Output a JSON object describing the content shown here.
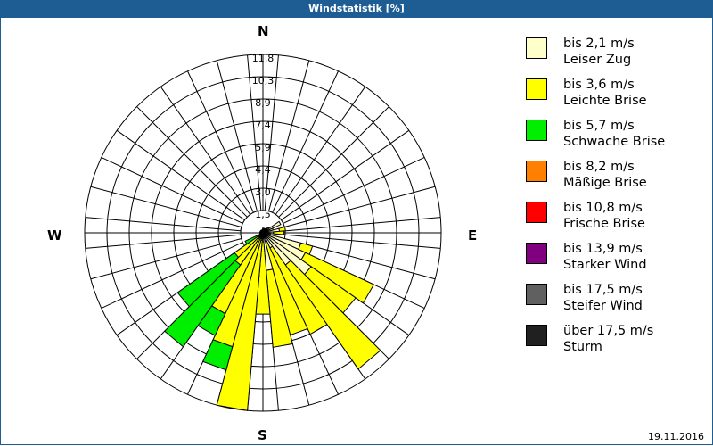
{
  "window": {
    "title": "Windstatistik [%]",
    "date": "19.11.2016"
  },
  "compass": {
    "n": "N",
    "e": "E",
    "s": "S",
    "w": "W"
  },
  "legend": [
    {
      "speed": "bis 2,1 m/s",
      "name": "Leiser Zug",
      "color": "#ffffcc"
    },
    {
      "speed": "bis 3,6 m/s",
      "name": "Leichte Brise",
      "color": "#ffff00"
    },
    {
      "speed": "bis 5,7 m/s",
      "name": "Schwache Brise",
      "color": "#00ee00"
    },
    {
      "speed": "bis 8,2 m/s",
      "name": "Mäßige Brise",
      "color": "#ff8000"
    },
    {
      "speed": "bis 10,8 m/s",
      "name": "Frische Brise",
      "color": "#ff0000"
    },
    {
      "speed": "bis 13,9 m/s",
      "name": "Starker Wind",
      "color": "#800080"
    },
    {
      "speed": "bis 17,5 m/s",
      "name": "Steifer Wind",
      "color": "#606060"
    },
    {
      "speed": "über 17,5 m/s",
      "name": "Sturm",
      "color": "#202020"
    }
  ],
  "chart_data": {
    "type": "polar-bar",
    "title": "Windstatistik [%]",
    "ring_labels": [
      "1,5",
      "3,0",
      "4,4",
      "5,9",
      "7,4",
      "8,9",
      "10,3",
      "11,8"
    ],
    "rmax": 11.8,
    "sector_width_deg": 10,
    "categories": [
      "bis 2,1 m/s",
      "bis 3,6 m/s",
      "bis 5,7 m/s",
      "bis 8,2 m/s",
      "bis 10,8 m/s",
      "bis 13,9 m/s",
      "bis 17,5 m/s",
      "über 17,5 m/s"
    ],
    "sectors": [
      {
        "dir": 0,
        "values": [
          0.3,
          0,
          0
        ]
      },
      {
        "dir": 10,
        "values": [
          0.3,
          0,
          0
        ]
      },
      {
        "dir": 20,
        "values": [
          0.3,
          0,
          0
        ]
      },
      {
        "dir": 30,
        "values": [
          0.3,
          0,
          0
        ]
      },
      {
        "dir": 40,
        "values": [
          0.4,
          0,
          0
        ]
      },
      {
        "dir": 50,
        "values": [
          0.5,
          0,
          0
        ]
      },
      {
        "dir": 60,
        "values": [
          1.3,
          0,
          0
        ]
      },
      {
        "dir": 70,
        "values": [
          0.7,
          0,
          0
        ]
      },
      {
        "dir": 80,
        "values": [
          1.1,
          0.4,
          0
        ]
      },
      {
        "dir": 90,
        "values": [
          0.7,
          0.7,
          0
        ]
      },
      {
        "dir": 100,
        "values": [
          0.5,
          0,
          0
        ]
      },
      {
        "dir": 110,
        "values": [
          2.6,
          0.8,
          0
        ]
      },
      {
        "dir": 120,
        "values": [
          3.1,
          5.0,
          0
        ]
      },
      {
        "dir": 130,
        "values": [
          3.9,
          3.6,
          0
        ]
      },
      {
        "dir": 140,
        "values": [
          2.6,
          8.4,
          0
        ]
      },
      {
        "dir": 150,
        "values": [
          1.1,
          6.3,
          0
        ]
      },
      {
        "dir": 160,
        "values": [
          0.6,
          6.4,
          0
        ]
      },
      {
        "dir": 170,
        "values": [
          2.5,
          5.1,
          0
        ]
      },
      {
        "dir": 180,
        "values": [
          0.6,
          4.8,
          0
        ]
      },
      {
        "dir": 190,
        "values": [
          0.5,
          11.3,
          0
        ]
      },
      {
        "dir": 200,
        "values": [
          0.4,
          7.4,
          1.6
        ]
      },
      {
        "dir": 210,
        "values": [
          0.3,
          5.6,
          1.6
        ]
      },
      {
        "dir": 220,
        "values": [
          0.3,
          2.3,
          6.6
        ]
      },
      {
        "dir": 230,
        "values": [
          0.3,
          2.0,
          4.6
        ]
      },
      {
        "dir": 240,
        "values": [
          0.2,
          0.2,
          0.9
        ]
      },
      {
        "dir": 250,
        "values": [
          0.2,
          0,
          0
        ]
      },
      {
        "dir": 260,
        "values": [
          0.2,
          0,
          0
        ]
      },
      {
        "dir": 270,
        "values": [
          0.2,
          0,
          0
        ]
      },
      {
        "dir": 280,
        "values": [
          0.2,
          0,
          0
        ]
      },
      {
        "dir": 290,
        "values": [
          0.2,
          0,
          0
        ]
      },
      {
        "dir": 300,
        "values": [
          0.2,
          0,
          0
        ]
      },
      {
        "dir": 310,
        "values": [
          0.2,
          0,
          0
        ]
      },
      {
        "dir": 320,
        "values": [
          0.2,
          0,
          0
        ]
      },
      {
        "dir": 330,
        "values": [
          0.2,
          0,
          0
        ]
      },
      {
        "dir": 340,
        "values": [
          0.2,
          0,
          0
        ]
      },
      {
        "dir": 350,
        "values": [
          0.2,
          0,
          0
        ]
      }
    ],
    "grid": true,
    "legend_position": "right"
  }
}
